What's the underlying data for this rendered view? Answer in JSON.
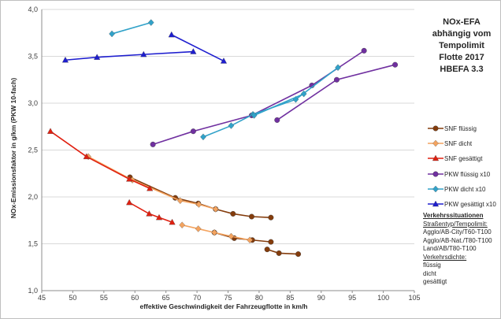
{
  "title_lines": [
    "NOx-EFA",
    "abhängig vom",
    "Tempolimit",
    "Flotte 2017",
    "HBEFA 3.3"
  ],
  "notes": {
    "heading": "Verkehrssituationen",
    "line1": "Straßentyp/Tempolimit:",
    "line2": "Agglo/AB-City/T60-T100",
    "line3": "Agglo/AB-Nat./T80-T100",
    "line4": "Land/AB/T80-T100",
    "line5": "Verkehrsdichte:",
    "line6": "flüssig",
    "line7": "dicht",
    "line8": "gesättigt"
  },
  "chart_data": {
    "type": "line",
    "xlabel": "effektive Geschwindigkeit der Fahrzeugflotte in km/h",
    "ylabel": "NOx-Emissionsfaktor  in g/km (PKW 10-fach)",
    "xlim": [
      45,
      105
    ],
    "ylim": [
      1.0,
      4.0
    ],
    "xticks": [
      "45",
      "50",
      "55",
      "60",
      "65",
      "70",
      "75",
      "80",
      "85",
      "90",
      "95",
      "100",
      "105"
    ],
    "yticks": [
      "1,0",
      "1,5",
      "2,0",
      "2,5",
      "3,0",
      "3,5",
      "4,0"
    ],
    "grid": "horizontal",
    "legend_position": "right",
    "series": [
      {
        "name": "SNF flüssig",
        "color": "#843c0c",
        "marker": "circle",
        "segments": [
          [
            [
              59.2,
              2.21
            ],
            [
              66.5,
              1.99
            ],
            [
              70.2,
              1.93
            ],
            [
              73.0,
              1.87
            ],
            [
              75.8,
              1.82
            ],
            [
              78.8,
              1.79
            ],
            [
              81.9,
              1.78
            ]
          ],
          [
            [
              72.8,
              1.62
            ],
            [
              76.0,
              1.56
            ],
            [
              78.9,
              1.54
            ],
            [
              81.9,
              1.52
            ]
          ],
          [
            [
              81.3,
              1.44
            ],
            [
              83.2,
              1.4
            ],
            [
              86.3,
              1.39
            ]
          ]
        ]
      },
      {
        "name": "SNF dicht",
        "color": "#f4a460",
        "marker": "diamond",
        "segments": [
          [
            [
              52.5,
              2.43
            ],
            [
              59.6,
              2.18
            ],
            [
              67.3,
              1.96
            ],
            [
              70.3,
              1.92
            ],
            [
              73.0,
              1.87
            ]
          ],
          [
            [
              67.6,
              1.7
            ],
            [
              70.2,
              1.66
            ],
            [
              72.8,
              1.62
            ],
            [
              75.5,
              1.58
            ],
            [
              78.5,
              1.54
            ]
          ]
        ]
      },
      {
        "name": "SNF gesättigt",
        "color": "#e02010",
        "marker": "triangle",
        "segments": [
          [
            [
              46.4,
              2.7
            ],
            [
              52.2,
              2.43
            ],
            [
              59.1,
              2.19
            ],
            [
              62.4,
              2.09
            ]
          ],
          [
            [
              59.1,
              1.94
            ],
            [
              62.3,
              1.82
            ],
            [
              63.9,
              1.78
            ],
            [
              66.0,
              1.73
            ]
          ]
        ]
      },
      {
        "name": "PKW flüssig x10",
        "color": "#7030a0",
        "marker": "circle",
        "segments": [
          [
            [
              62.9,
              2.56
            ],
            [
              69.4,
              2.7
            ],
            [
              78.8,
              2.87
            ],
            [
              88.5,
              3.19
            ],
            [
              96.9,
              3.56
            ]
          ],
          [
            [
              82.9,
              2.82
            ],
            [
              92.5,
              3.25
            ],
            [
              101.9,
              3.41
            ]
          ]
        ]
      },
      {
        "name": "PKW dicht x10",
        "color": "#31a2c9",
        "marker": "diamond",
        "segments": [
          [
            [
              56.3,
              3.74
            ],
            [
              62.6,
              3.86
            ]
          ],
          [
            [
              71.0,
              2.64
            ],
            [
              75.5,
              2.76
            ],
            [
              79.0,
              2.88
            ],
            [
              85.9,
              3.04
            ],
            [
              92.7,
              3.38
            ]
          ],
          [
            [
              79.2,
              2.87
            ],
            [
              87.2,
              3.1
            ]
          ]
        ]
      },
      {
        "name": "PKW gesättigt x10",
        "color": "#1e1ecf",
        "marker": "triangle",
        "segments": [
          [
            [
              48.8,
              3.46
            ],
            [
              53.9,
              3.49
            ],
            [
              61.4,
              3.52
            ],
            [
              69.4,
              3.55
            ]
          ],
          [
            [
              65.9,
              3.73
            ],
            [
              74.3,
              3.45
            ]
          ]
        ]
      }
    ]
  }
}
